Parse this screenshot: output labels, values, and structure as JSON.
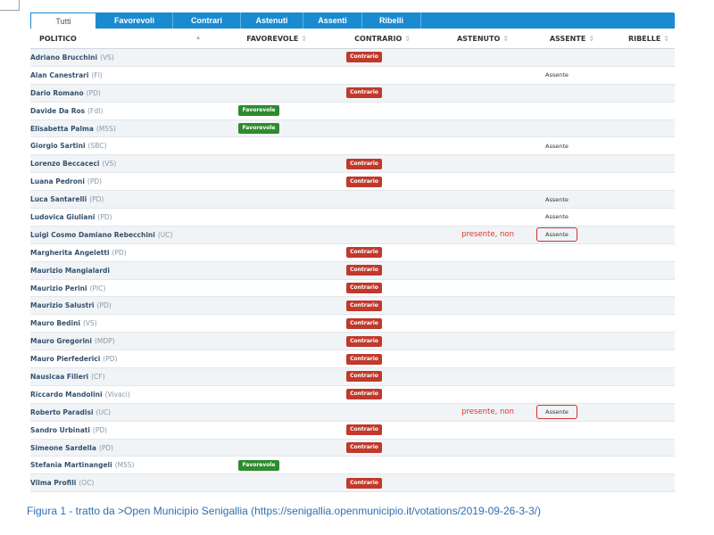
{
  "tabs": [
    {
      "label": "Tutti",
      "active": true
    },
    {
      "label": "Favorevoli",
      "active": false
    },
    {
      "label": "Contrari",
      "active": false
    },
    {
      "label": "Astenuti",
      "active": false
    },
    {
      "label": "Assenti",
      "active": false
    },
    {
      "label": "Ribelli",
      "active": false
    }
  ],
  "columns": {
    "politico": "POLITICO",
    "favorevole": "FAVOREVOLE",
    "contrario": "CONTRARIO",
    "astenuto": "ASTENUTO",
    "assente": "ASSENTE",
    "ribelle": "RIBELLE"
  },
  "labels": {
    "favorevole": "Favorevole",
    "contrario": "Contrario",
    "assente": "Assente",
    "presente_non": "presente, non"
  },
  "rows": [
    {
      "name": "Adriano Brucchini",
      "party": "(VS)",
      "vote": "contrario"
    },
    {
      "name": "Alan Canestrari",
      "party": "(FI)",
      "vote": "assente"
    },
    {
      "name": "Dario Romano",
      "party": "(PD)",
      "vote": "contrario"
    },
    {
      "name": "Davide Da Ros",
      "party": "(FdI)",
      "vote": "favorevole"
    },
    {
      "name": "Elisabetta Palma",
      "party": "(M5S)",
      "vote": "favorevole"
    },
    {
      "name": "Giorgio Sartini",
      "party": "(SBC)",
      "vote": "assente"
    },
    {
      "name": "Lorenzo Beccaceci",
      "party": "(VS)",
      "vote": "contrario"
    },
    {
      "name": "Luana Pedroni",
      "party": "(PD)",
      "vote": "contrario"
    },
    {
      "name": "Luca Santarelli",
      "party": "(PD)",
      "vote": "assente"
    },
    {
      "name": "Ludovica Giuliani",
      "party": "(PD)",
      "vote": "assente"
    },
    {
      "name": "Luigi Cosmo Damiano Rebecchini",
      "party": "(UC)",
      "vote": "presente_assente"
    },
    {
      "name": "Margherita Angeletti",
      "party": "(PD)",
      "vote": "contrario"
    },
    {
      "name": "Maurizio Mangialardi",
      "party": "",
      "vote": "contrario"
    },
    {
      "name": "Maurizio Perini",
      "party": "(PIC)",
      "vote": "contrario"
    },
    {
      "name": "Maurizio Salustri",
      "party": "(PD)",
      "vote": "contrario"
    },
    {
      "name": "Mauro Bedini",
      "party": "(VS)",
      "vote": "contrario"
    },
    {
      "name": "Mauro Gregorini",
      "party": "(MDP)",
      "vote": "contrario"
    },
    {
      "name": "Mauro Pierfederici",
      "party": "(PD)",
      "vote": "contrario"
    },
    {
      "name": "Nausicaa Filieri",
      "party": "(CF)",
      "vote": "contrario"
    },
    {
      "name": "Riccardo Mandolini",
      "party": "(Vivaci)",
      "vote": "contrario"
    },
    {
      "name": "Roberto Paradisi",
      "party": "(UC)",
      "vote": "presente_assente"
    },
    {
      "name": "Sandro Urbinati",
      "party": "(PD)",
      "vote": "contrario"
    },
    {
      "name": "Simeone Sardella",
      "party": "(PD)",
      "vote": "contrario"
    },
    {
      "name": "Stefania Martinangeli",
      "party": "(M5S)",
      "vote": "favorevole"
    },
    {
      "name": "Vilma Profili",
      "party": "(OC)",
      "vote": "contrario"
    }
  ],
  "caption": "Figura 1 - tratto da >Open Municipio Senigallia (https://senigallia.openmunicipio.it/votations/2019-09-26-3-3/)",
  "colors": {
    "tab_bar": "#1a8bd0",
    "favorevole": "#2e8b2e",
    "contrario": "#c0392b",
    "highlight": "#d22f2f",
    "caption": "#2e6fb3"
  }
}
